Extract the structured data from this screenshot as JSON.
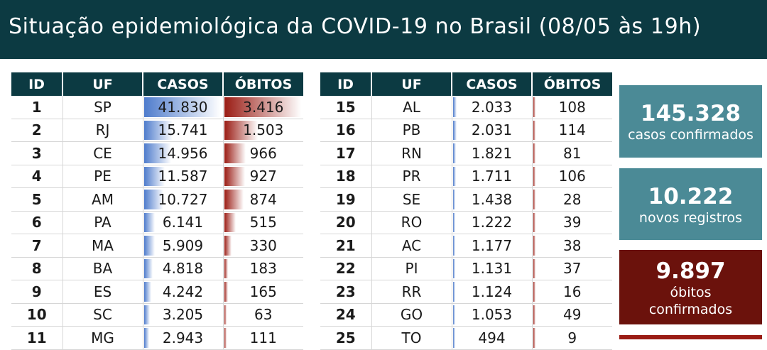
{
  "header": {
    "title": "Situação epidemiológica da COVID-19 no Brasil (08/05 às 19h)"
  },
  "colors": {
    "header_bg": "#0c3a42",
    "card_teal": "#4b8a96",
    "card_deaths": "#6b120c",
    "bar_cases": "#4f7ccc",
    "bar_deaths": "#9a1c14"
  },
  "table_headers": [
    "ID",
    "UF",
    "CASOS",
    "ÓBITOS"
  ],
  "left_rows": [
    {
      "id": "1",
      "uf": "SP",
      "casos": "41.830",
      "obitos": "3.416",
      "casos_frac": 1.0,
      "obitos_frac": 1.0
    },
    {
      "id": "2",
      "uf": "RJ",
      "casos": "15.741",
      "obitos": "1.503",
      "casos_frac": 0.376,
      "obitos_frac": 0.44
    },
    {
      "id": "3",
      "uf": "CE",
      "casos": "14.956",
      "obitos": "966",
      "casos_frac": 0.358,
      "obitos_frac": 0.283
    },
    {
      "id": "4",
      "uf": "PE",
      "casos": "11.587",
      "obitos": "927",
      "casos_frac": 0.277,
      "obitos_frac": 0.271
    },
    {
      "id": "5",
      "uf": "AM",
      "casos": "10.727",
      "obitos": "874",
      "casos_frac": 0.256,
      "obitos_frac": 0.256
    },
    {
      "id": "6",
      "uf": "PA",
      "casos": "6.141",
      "obitos": "515",
      "casos_frac": 0.147,
      "obitos_frac": 0.151
    },
    {
      "id": "7",
      "uf": "MA",
      "casos": "5.909",
      "obitos": "330",
      "casos_frac": 0.141,
      "obitos_frac": 0.097
    },
    {
      "id": "8",
      "uf": "BA",
      "casos": "4.818",
      "obitos": "183",
      "casos_frac": 0.115,
      "obitos_frac": 0.054
    },
    {
      "id": "9",
      "uf": "ES",
      "casos": "4.242",
      "obitos": "165",
      "casos_frac": 0.101,
      "obitos_frac": 0.048
    },
    {
      "id": "10",
      "uf": "SC",
      "casos": "3.205",
      "obitos": "63",
      "casos_frac": 0.077,
      "obitos_frac": 0.018
    },
    {
      "id": "11",
      "uf": "MG",
      "casos": "2.943",
      "obitos": "111",
      "casos_frac": 0.07,
      "obitos_frac": 0.032
    }
  ],
  "right_rows": [
    {
      "id": "15",
      "uf": "AL",
      "casos": "2.033",
      "obitos": "108",
      "casos_frac": 0.049,
      "obitos_frac": 0.032
    },
    {
      "id": "16",
      "uf": "PB",
      "casos": "2.031",
      "obitos": "114",
      "casos_frac": 0.049,
      "obitos_frac": 0.033
    },
    {
      "id": "17",
      "uf": "RN",
      "casos": "1.821",
      "obitos": "81",
      "casos_frac": 0.044,
      "obitos_frac": 0.024
    },
    {
      "id": "18",
      "uf": "PR",
      "casos": "1.711",
      "obitos": "106",
      "casos_frac": 0.041,
      "obitos_frac": 0.031
    },
    {
      "id": "19",
      "uf": "SE",
      "casos": "1.438",
      "obitos": "28",
      "casos_frac": 0.034,
      "obitos_frac": 0.008
    },
    {
      "id": "20",
      "uf": "RO",
      "casos": "1.222",
      "obitos": "39",
      "casos_frac": 0.029,
      "obitos_frac": 0.011
    },
    {
      "id": "21",
      "uf": "AC",
      "casos": "1.177",
      "obitos": "38",
      "casos_frac": 0.028,
      "obitos_frac": 0.011
    },
    {
      "id": "22",
      "uf": "PI",
      "casos": "1.131",
      "obitos": "37",
      "casos_frac": 0.027,
      "obitos_frac": 0.011
    },
    {
      "id": "23",
      "uf": "RR",
      "casos": "1.124",
      "obitos": "16",
      "casos_frac": 0.027,
      "obitos_frac": 0.005
    },
    {
      "id": "24",
      "uf": "GO",
      "casos": "1.053",
      "obitos": "49",
      "casos_frac": 0.025,
      "obitos_frac": 0.014
    },
    {
      "id": "25",
      "uf": "TO",
      "casos": "494",
      "obitos": "9",
      "casos_frac": 0.012,
      "obitos_frac": 0.003
    }
  ],
  "cards": [
    {
      "number": "145.328",
      "label": "casos confirmados"
    },
    {
      "number": "10.222",
      "label": "novos registros"
    },
    {
      "number": "9.897",
      "label_line1": "óbitos",
      "label_line2": "confirmados"
    }
  ]
}
